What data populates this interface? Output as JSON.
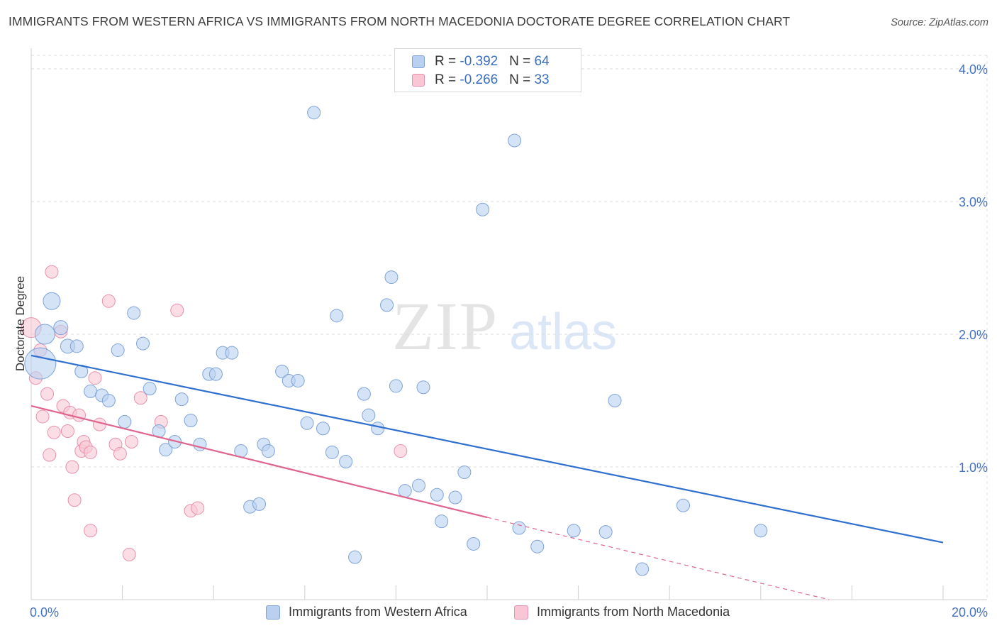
{
  "title": "IMMIGRANTS FROM WESTERN AFRICA VS IMMIGRANTS FROM NORTH MACEDONIA DOCTORATE DEGREE CORRELATION CHART",
  "source": "Source: ZipAtlas.com",
  "watermark": {
    "zip": "ZIP",
    "atlas": "atlas"
  },
  "legend": {
    "rows": [
      {
        "r_label": "R = ",
        "r_value": "-0.392",
        "n_label": "N = ",
        "n_value": "64"
      },
      {
        "r_label": "R = ",
        "r_value": "-0.266",
        "n_label": "N = ",
        "n_value": "33"
      }
    ]
  },
  "colors": {
    "blue_fill": "#b9d0f0",
    "blue_stroke": "#7fa3d8",
    "blue_line": "#2f6fd0",
    "pink_fill": "#f8c6d4",
    "pink_stroke": "#e891ab",
    "pink_line": "#e0648e",
    "tick_text": "#4472c4",
    "grid": "#dddddd"
  },
  "chart_data": {
    "type": "scatter",
    "title": "IMMIGRANTS FROM WESTERN AFRICA VS IMMIGRANTS FROM NORTH MACEDONIA DOCTORATE DEGREE CORRELATION CHART",
    "xlabel": "",
    "ylabel": "Doctorate Degree",
    "xlim": [
      0,
      20
    ],
    "ylim": [
      0,
      4.2
    ],
    "x_ticks": [
      {
        "value": 0,
        "label": "0.0%"
      },
      {
        "value": 20,
        "label": "20.0%"
      }
    ],
    "y_ticks": [
      {
        "value": 1,
        "label": "1.0%"
      },
      {
        "value": 2,
        "label": "2.0%"
      },
      {
        "value": 3,
        "label": "3.0%"
      },
      {
        "value": 4,
        "label": "4.0%"
      }
    ],
    "grid": true,
    "legend_position": "top-center",
    "series": [
      {
        "name": "Immigrants from Western Africa",
        "color": "blue",
        "trend": {
          "x0": 0,
          "y0": 1.84,
          "x1": 20,
          "y1": 0.43,
          "dashed_from": null
        },
        "points": [
          [
            0.2,
            1.78,
            22
          ],
          [
            0.3,
            2.0,
            14
          ],
          [
            0.45,
            2.25,
            12
          ],
          [
            0.65,
            2.05,
            10
          ],
          [
            0.8,
            1.91,
            10
          ],
          [
            1.0,
            1.91,
            9
          ],
          [
            1.1,
            1.72,
            9
          ],
          [
            1.3,
            1.57,
            9
          ],
          [
            1.55,
            1.54,
            9
          ],
          [
            1.7,
            1.5,
            9
          ],
          [
            1.9,
            1.88,
            9
          ],
          [
            2.05,
            1.34,
            9
          ],
          [
            2.25,
            2.16,
            9
          ],
          [
            2.45,
            1.93,
            9
          ],
          [
            2.6,
            1.59,
            9
          ],
          [
            2.8,
            1.27,
            9
          ],
          [
            2.95,
            1.13,
            9
          ],
          [
            3.15,
            1.19,
            9
          ],
          [
            3.3,
            1.51,
            9
          ],
          [
            3.5,
            1.35,
            9
          ],
          [
            3.7,
            1.17,
            9
          ],
          [
            3.9,
            1.7,
            9
          ],
          [
            4.05,
            1.7,
            9
          ],
          [
            4.2,
            1.86,
            9
          ],
          [
            4.4,
            1.86,
            9
          ],
          [
            4.6,
            1.12,
            9
          ],
          [
            4.8,
            0.7,
            9
          ],
          [
            5.0,
            0.72,
            9
          ],
          [
            5.1,
            1.17,
            9
          ],
          [
            5.2,
            1.12,
            9
          ],
          [
            5.5,
            1.72,
            9
          ],
          [
            5.65,
            1.65,
            9
          ],
          [
            5.85,
            1.65,
            9
          ],
          [
            6.05,
            1.33,
            9
          ],
          [
            6.2,
            3.67,
            9
          ],
          [
            6.4,
            1.29,
            9
          ],
          [
            6.6,
            1.11,
            9
          ],
          [
            6.7,
            2.14,
            9
          ],
          [
            6.9,
            1.04,
            9
          ],
          [
            7.1,
            0.32,
            9
          ],
          [
            7.3,
            1.55,
            9
          ],
          [
            7.4,
            1.39,
            9
          ],
          [
            7.6,
            1.29,
            9
          ],
          [
            7.8,
            2.22,
            9
          ],
          [
            7.9,
            2.43,
            9
          ],
          [
            8.0,
            1.61,
            9
          ],
          [
            8.2,
            0.82,
            9
          ],
          [
            8.5,
            0.86,
            9
          ],
          [
            8.6,
            1.6,
            9
          ],
          [
            8.9,
            0.79,
            9
          ],
          [
            9.0,
            0.59,
            9
          ],
          [
            9.3,
            0.77,
            9
          ],
          [
            9.5,
            0.96,
            9
          ],
          [
            9.7,
            0.42,
            9
          ],
          [
            9.9,
            2.94,
            9
          ],
          [
            10.6,
            3.46,
            9
          ],
          [
            10.7,
            0.54,
            9
          ],
          [
            11.1,
            0.4,
            9
          ],
          [
            11.9,
            0.52,
            9
          ],
          [
            12.6,
            0.51,
            9
          ],
          [
            12.8,
            1.5,
            9
          ],
          [
            13.4,
            0.23,
            9
          ],
          [
            14.3,
            0.71,
            9
          ],
          [
            16.0,
            0.52,
            9
          ]
        ]
      },
      {
        "name": "Immigrants from North Macedonia",
        "color": "pink",
        "trend": {
          "x0": 0,
          "y0": 1.46,
          "x1": 10,
          "y1": 0.62,
          "dashed_from": 10,
          "dash_x1": 17.5,
          "dash_y1": 0.0
        },
        "points": [
          [
            0.0,
            2.05,
            14
          ],
          [
            0.1,
            1.67,
            9
          ],
          [
            0.2,
            1.88,
            9
          ],
          [
            0.25,
            1.38,
            9
          ],
          [
            0.35,
            1.55,
            9
          ],
          [
            0.4,
            1.09,
            9
          ],
          [
            0.45,
            2.47,
            9
          ],
          [
            0.5,
            1.26,
            9
          ],
          [
            0.65,
            2.02,
            9
          ],
          [
            0.7,
            1.46,
            9
          ],
          [
            0.8,
            1.27,
            9
          ],
          [
            0.85,
            1.41,
            9
          ],
          [
            0.9,
            1.0,
            9
          ],
          [
            0.95,
            0.75,
            9
          ],
          [
            1.05,
            1.39,
            9
          ],
          [
            1.1,
            1.12,
            9
          ],
          [
            1.15,
            1.19,
            9
          ],
          [
            1.2,
            1.15,
            9
          ],
          [
            1.3,
            1.11,
            9
          ],
          [
            1.3,
            0.52,
            9
          ],
          [
            1.4,
            1.67,
            9
          ],
          [
            1.5,
            1.32,
            9
          ],
          [
            1.7,
            2.25,
            9
          ],
          [
            1.85,
            1.17,
            9
          ],
          [
            1.95,
            1.1,
            9
          ],
          [
            2.15,
            0.34,
            9
          ],
          [
            2.2,
            1.19,
            9
          ],
          [
            2.4,
            1.52,
            9
          ],
          [
            2.85,
            1.34,
            9
          ],
          [
            3.2,
            2.18,
            9
          ],
          [
            3.5,
            0.67,
            9
          ],
          [
            3.65,
            0.69,
            9
          ],
          [
            8.1,
            1.12,
            9
          ]
        ]
      }
    ]
  },
  "bottom_legend": [
    {
      "label": "Immigrants from Western Africa"
    },
    {
      "label": "Immigrants from North Macedonia"
    }
  ]
}
